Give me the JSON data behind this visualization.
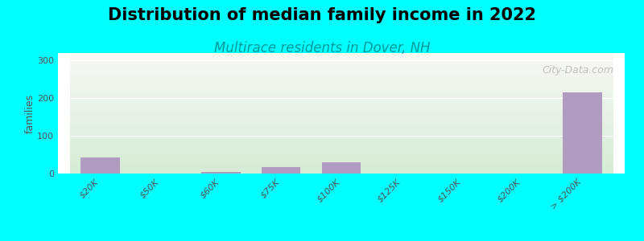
{
  "title": "Distribution of median family income in 2022",
  "subtitle": "Multirace residents in Dover, NH",
  "categories": [
    "$20K",
    "$50K",
    "$60K",
    "$75K",
    "$100K",
    "$125K",
    "$150K",
    "$200K",
    "> $200K"
  ],
  "values": [
    42,
    0,
    5,
    18,
    30,
    0,
    0,
    0,
    215
  ],
  "bar_color": "#b09cc0",
  "background_color": "#00ffff",
  "plot_bg_top": "#f8f8f5",
  "plot_bg_bottom": "#d6ecd6",
  "ylabel": "families",
  "ylim": [
    0,
    320
  ],
  "yticks": [
    0,
    100,
    200,
    300
  ],
  "title_fontsize": 15,
  "subtitle_fontsize": 12,
  "watermark": "City-Data.com"
}
